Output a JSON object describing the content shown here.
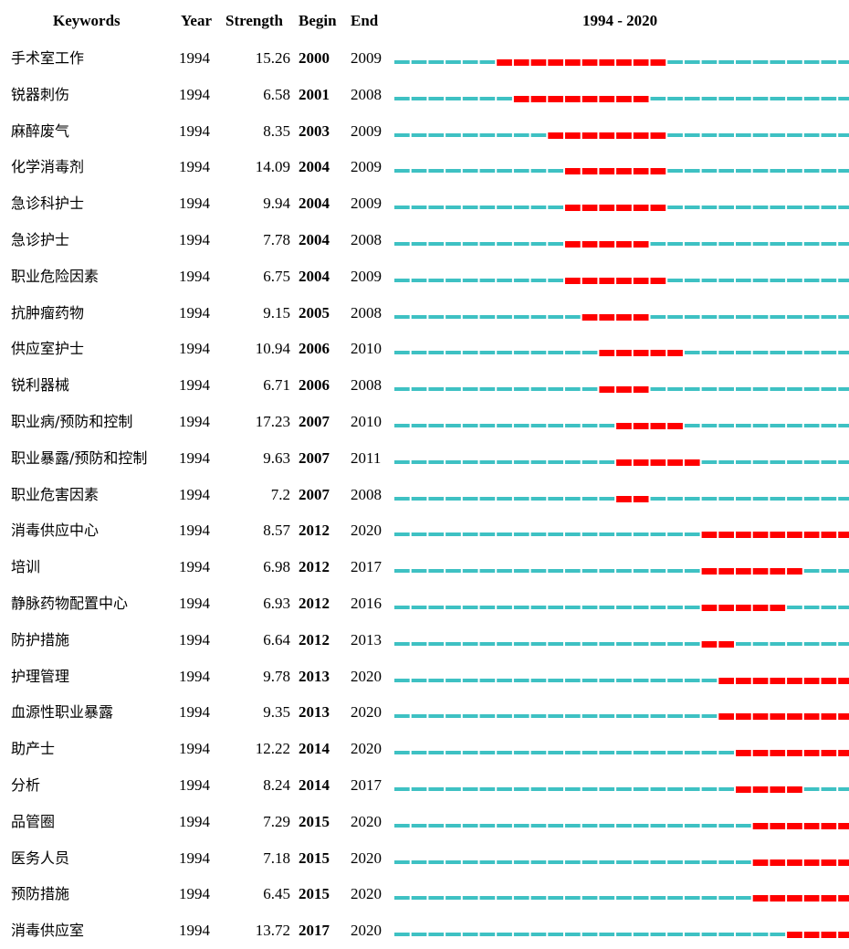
{
  "headers": {
    "keywords": "Keywords",
    "year": "Year",
    "strength": "Strength",
    "begin": "Begin",
    "end": "End",
    "range": "1994 - 2020"
  },
  "colors": {
    "background_segment": "#3ec1c3",
    "burst_segment": "#ff0000"
  },
  "chart_data": {
    "type": "table",
    "title": "",
    "timeline": {
      "start": 1994,
      "end": 2020
    },
    "columns": [
      "Keywords",
      "Year",
      "Strength",
      "Begin",
      "End",
      "1994 - 2020"
    ],
    "rows": [
      {
        "keyword": "手术室工作",
        "year": "1994",
        "strength": "15.26",
        "begin": "2000",
        "end": "2009"
      },
      {
        "keyword": "锐器刺伤",
        "year": "1994",
        "strength": "6.58",
        "begin": "2001",
        "end": "2008"
      },
      {
        "keyword": "麻醉废气",
        "year": "1994",
        "strength": "8.35",
        "begin": "2003",
        "end": "2009"
      },
      {
        "keyword": "化学消毒剂",
        "year": "1994",
        "strength": "14.09",
        "begin": "2004",
        "end": "2009"
      },
      {
        "keyword": "急诊科护士",
        "year": "1994",
        "strength": "9.94",
        "begin": "2004",
        "end": "2009"
      },
      {
        "keyword": "急诊护士",
        "year": "1994",
        "strength": "7.78",
        "begin": "2004",
        "end": "2008"
      },
      {
        "keyword": "职业危险因素",
        "year": "1994",
        "strength": "6.75",
        "begin": "2004",
        "end": "2009"
      },
      {
        "keyword": "抗肿瘤药物",
        "year": "1994",
        "strength": "9.15",
        "begin": "2005",
        "end": "2008"
      },
      {
        "keyword": "供应室护士",
        "year": "1994",
        "strength": "10.94",
        "begin": "2006",
        "end": "2010"
      },
      {
        "keyword": "锐利器械",
        "year": "1994",
        "strength": "6.71",
        "begin": "2006",
        "end": "2008"
      },
      {
        "keyword": "职业病/预防和控制",
        "year": "1994",
        "strength": "17.23",
        "begin": "2007",
        "end": "2010"
      },
      {
        "keyword": "职业暴露/预防和控制",
        "year": "1994",
        "strength": "9.63",
        "begin": "2007",
        "end": "2011"
      },
      {
        "keyword": "职业危害因素",
        "year": "1994",
        "strength": "7.2",
        "begin": "2007",
        "end": "2008"
      },
      {
        "keyword": "消毒供应中心",
        "year": "1994",
        "strength": "8.57",
        "begin": "2012",
        "end": "2020"
      },
      {
        "keyword": "培训",
        "year": "1994",
        "strength": "6.98",
        "begin": "2012",
        "end": "2017"
      },
      {
        "keyword": "静脉药物配置中心",
        "year": "1994",
        "strength": "6.93",
        "begin": "2012",
        "end": "2016"
      },
      {
        "keyword": "防护措施",
        "year": "1994",
        "strength": "6.64",
        "begin": "2012",
        "end": "2013"
      },
      {
        "keyword": "护理管理",
        "year": "1994",
        "strength": "9.78",
        "begin": "2013",
        "end": "2020"
      },
      {
        "keyword": "血源性职业暴露",
        "year": "1994",
        "strength": "9.35",
        "begin": "2013",
        "end": "2020"
      },
      {
        "keyword": "助产士",
        "year": "1994",
        "strength": "12.22",
        "begin": "2014",
        "end": "2020"
      },
      {
        "keyword": "分析",
        "year": "1994",
        "strength": "8.24",
        "begin": "2014",
        "end": "2017"
      },
      {
        "keyword": "品管圈",
        "year": "1994",
        "strength": "7.29",
        "begin": "2015",
        "end": "2020"
      },
      {
        "keyword": "医务人员",
        "year": "1994",
        "strength": "7.18",
        "begin": "2015",
        "end": "2020"
      },
      {
        "keyword": "预防措施",
        "year": "1994",
        "strength": "6.45",
        "begin": "2015",
        "end": "2020"
      },
      {
        "keyword": "消毒供应室",
        "year": "1994",
        "strength": "13.72",
        "begin": "2017",
        "end": "2020"
      }
    ]
  }
}
